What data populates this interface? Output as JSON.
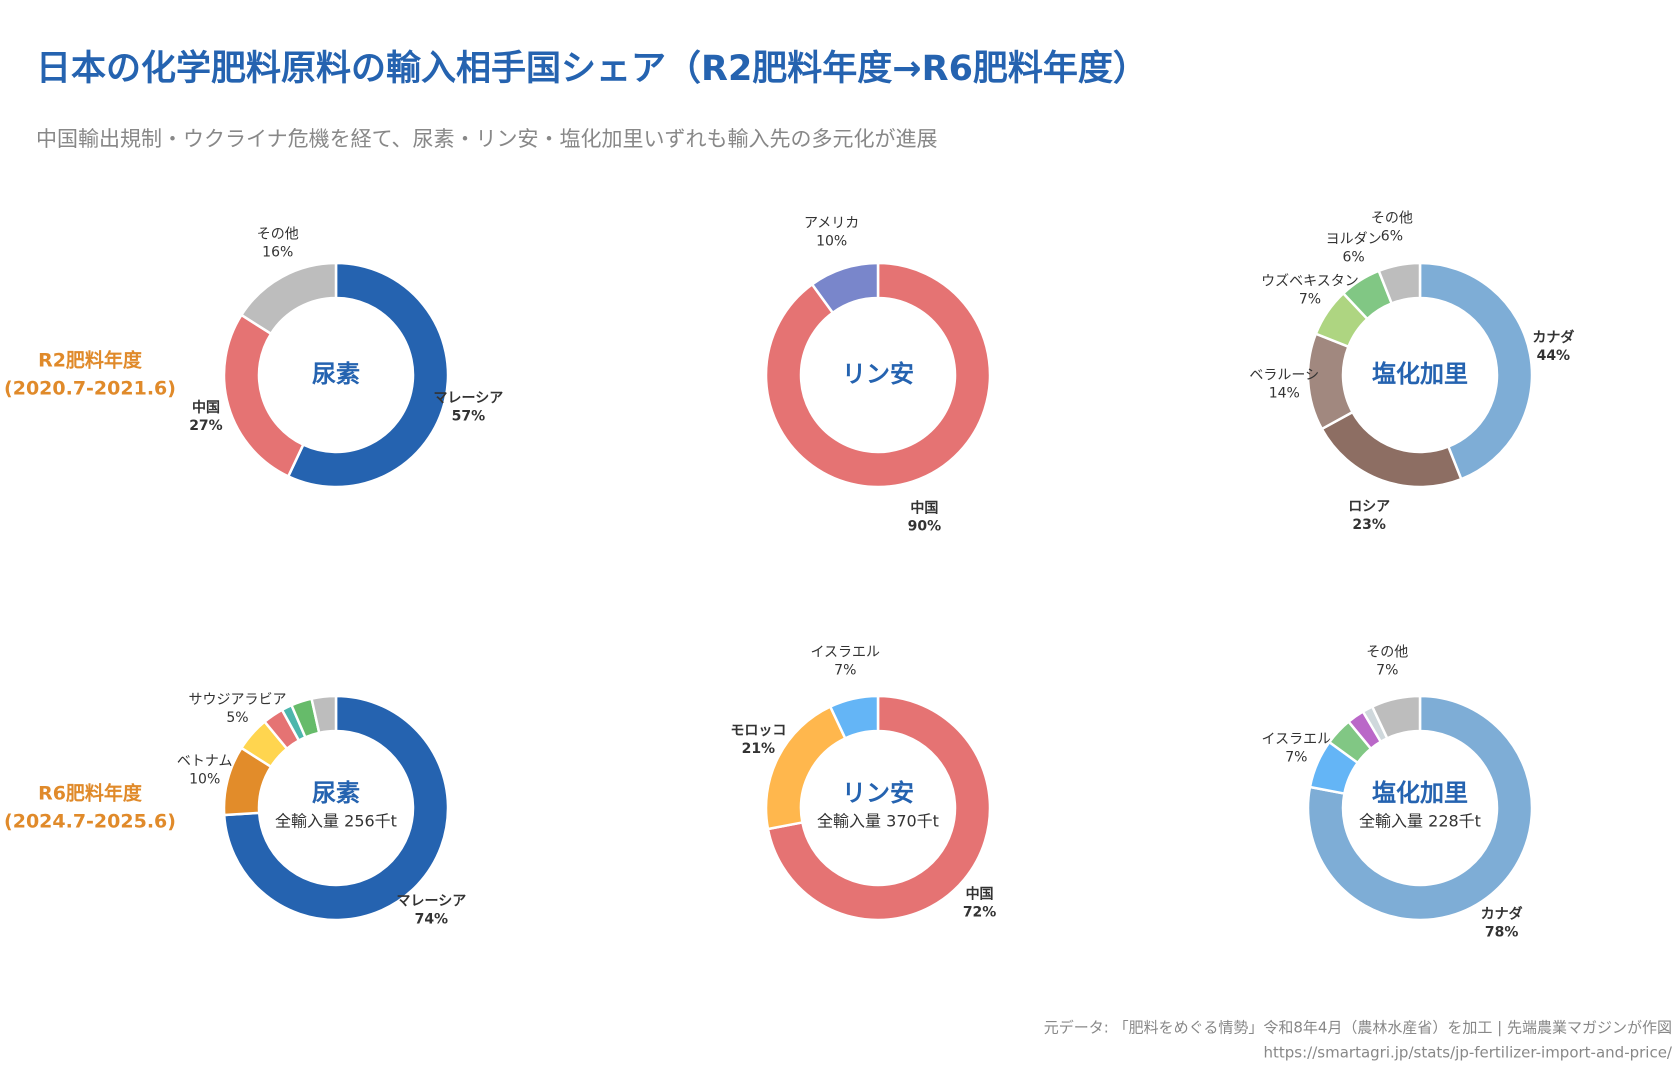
{
  "title": "日本の化学肥料原料の輸入相手国シェア（R2肥料年度→R6肥料年度）",
  "subtitle": "中国輸出規制・ウクライナ危機を経て、尿素・リン安・塩化加里いずれも輸入先の多元化が進展",
  "row_labels": [
    [
      "R2肥料年度",
      "(2020.7-2021.6)"
    ],
    [
      "R6肥料年度",
      "(2024.7-2025.6)"
    ]
  ],
  "source": [
    "元データ: 「肥料をめぐる情勢」令和8年4月（農林水産省）を加工 | 先端農業マガジンが作図",
    "https://smartagri.jp/stats/jp-fertilizer-import-and-price/"
  ],
  "chart_data": [
    {
      "type": "donut",
      "center_label": "尿素",
      "categories": [
        "マレーシア",
        "中国",
        "その他"
      ],
      "values": [
        57,
        27,
        16
      ],
      "value_labels": [
        "57%",
        "27%",
        "16%"
      ],
      "colors": [
        "#2563b0",
        "#e57373",
        "#bdbdbd"
      ]
    },
    {
      "type": "donut",
      "center_label": "リン安",
      "categories": [
        "中国",
        "アメリカ"
      ],
      "values": [
        90,
        10
      ],
      "value_labels": [
        "90%",
        "10%"
      ],
      "colors": [
        "#e57373",
        "#7986cb"
      ]
    },
    {
      "type": "donut",
      "center_label": "塩化加里",
      "categories": [
        "カナダ",
        "ロシア",
        "ベラルーシ",
        "ウズベキスタン",
        "ヨルダン",
        "その他"
      ],
      "values": [
        44,
        23,
        14,
        7,
        6,
        6
      ],
      "value_labels": [
        "44%",
        "23%",
        "14%",
        "7%",
        "6%",
        "6%"
      ],
      "colors": [
        "#7eadd6",
        "#8d6e63",
        "#a1887f",
        "#aed581",
        "#81c784",
        "#bdbdbd"
      ]
    },
    {
      "type": "donut",
      "center_label": "尿素",
      "center_sublabel": "全輸入量 256千t",
      "categories": [
        "マレーシア",
        "ベトナム",
        "サウジアラビア",
        null,
        null,
        null,
        null
      ],
      "values": [
        74,
        10,
        5,
        3,
        1.5,
        3,
        3.5
      ],
      "value_labels": [
        "74%",
        "10%",
        "5%",
        null,
        null,
        null,
        null
      ],
      "colors": [
        "#2563b0",
        "#e28c2a",
        "#ffd54f",
        "#e57373",
        "#4db6ac",
        "#66bb6a",
        "#bdbdbd"
      ]
    },
    {
      "type": "donut",
      "center_label": "リン安",
      "center_sublabel": "全輸入量 370千t",
      "categories": [
        "中国",
        "モロッコ",
        "イスラエル"
      ],
      "values": [
        72,
        21,
        7
      ],
      "value_labels": [
        "72%",
        "21%",
        "7%"
      ],
      "colors": [
        "#e57373",
        "#ffb74d",
        "#64b5f6"
      ]
    },
    {
      "type": "donut",
      "center_label": "塩化加里",
      "center_sublabel": "全輸入量 228千t",
      "categories": [
        "カナダ",
        "イスラエル",
        null,
        null,
        null,
        "その他"
      ],
      "values": [
        78,
        7,
        4,
        2.5,
        1.5,
        7
      ],
      "value_labels": [
        "78%",
        "7%",
        null,
        null,
        null,
        "7%"
      ],
      "colors": [
        "#7eadd6",
        "#64b5f6",
        "#81c784",
        "#ba68c8",
        "#cfd8dc",
        "#bdbdbd"
      ]
    }
  ]
}
